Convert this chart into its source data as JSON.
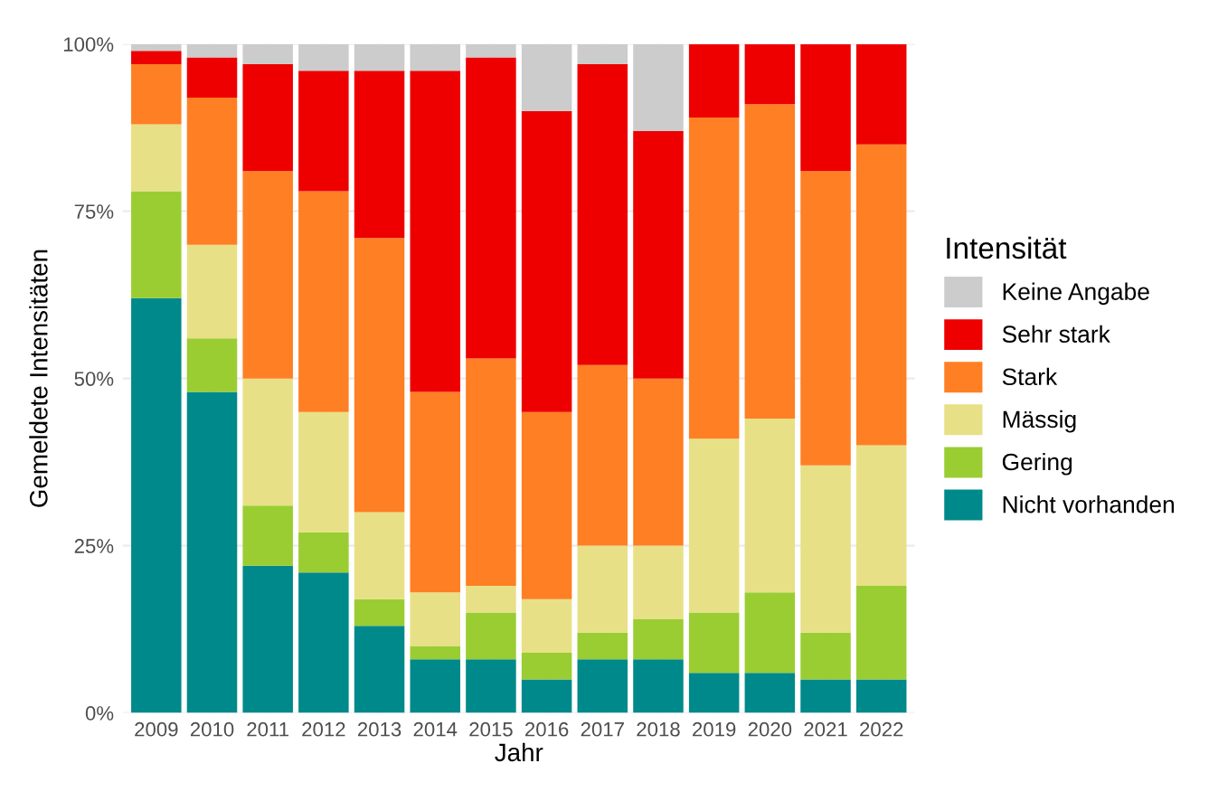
{
  "chart_data": {
    "type": "bar",
    "stacked": true,
    "xlabel": "Jahr",
    "ylabel": "Gemeldete Intensitäten",
    "legend_title": "Intensität",
    "legend": "right",
    "grid": true,
    "categories": [
      "2009",
      "2010",
      "2011",
      "2012",
      "2013",
      "2014",
      "2015",
      "2016",
      "2017",
      "2018",
      "2019",
      "2020",
      "2021",
      "2022"
    ],
    "ylim": [
      0,
      100
    ],
    "yticks": [
      {
        "value": 0,
        "label": "0%"
      },
      {
        "value": 25,
        "label": "25%"
      },
      {
        "value": 50,
        "label": "50%"
      },
      {
        "value": 75,
        "label": "75%"
      },
      {
        "value": 100,
        "label": "100%"
      }
    ],
    "series": [
      {
        "name": "Nicht vorhanden",
        "color": "#00898a",
        "values": [
          62,
          48,
          22,
          21,
          13,
          8,
          8,
          5,
          8,
          8,
          6,
          6,
          5,
          5
        ]
      },
      {
        "name": "Gering",
        "color": "#9acd32",
        "values": [
          16,
          8,
          9,
          6,
          4,
          2,
          7,
          4,
          4,
          6,
          9,
          12,
          7,
          14
        ]
      },
      {
        "name": "Mässig",
        "color": "#e8e086",
        "values": [
          10,
          14,
          19,
          18,
          13,
          8,
          4,
          8,
          13,
          11,
          26,
          26,
          25,
          21
        ]
      },
      {
        "name": "Stark",
        "color": "#ff7f24",
        "values": [
          9,
          22,
          31,
          33,
          41,
          30,
          34,
          28,
          27,
          25,
          48,
          47,
          44,
          45
        ]
      },
      {
        "name": "Sehr stark",
        "color": "#ee0000",
        "values": [
          2,
          6,
          16,
          18,
          25,
          48,
          45,
          45,
          45,
          37,
          11,
          9,
          19,
          15
        ]
      },
      {
        "name": "Keine Angabe",
        "color": "#cccccc",
        "values": [
          1,
          2,
          3,
          4,
          4,
          4,
          2,
          10,
          3,
          13,
          0,
          0,
          0,
          0
        ]
      }
    ]
  }
}
